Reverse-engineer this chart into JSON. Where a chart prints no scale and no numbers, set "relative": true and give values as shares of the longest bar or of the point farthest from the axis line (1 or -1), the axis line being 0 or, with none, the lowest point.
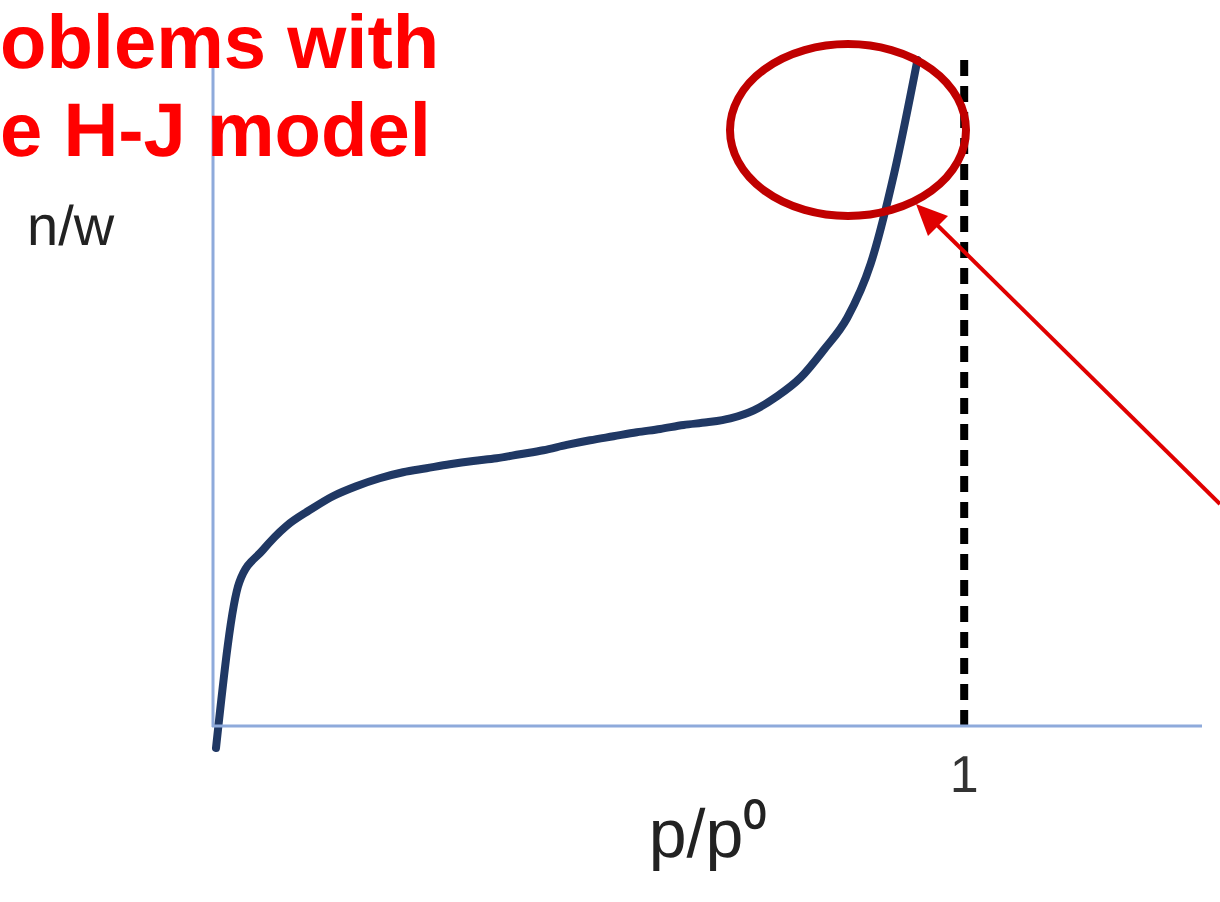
{
  "chart_data": {
    "type": "line",
    "title": [
      "oblems with",
      "e H-J model"
    ],
    "xlabel": "p/p⁰",
    "ylabel": "n/w",
    "relative": true,
    "categories": [
      null,
      null,
      null,
      null,
      null,
      null,
      null,
      null,
      null,
      null,
      null,
      null,
      null,
      null,
      null,
      null,
      null,
      null,
      null,
      null,
      null,
      null,
      null,
      null,
      null,
      null,
      null,
      null,
      null,
      null,
      null,
      null,
      null,
      null,
      null,
      null,
      null,
      null,
      null,
      null,
      null,
      null,
      null
    ],
    "series": [
      {
        "color": "#203864",
        "values": [
          -0.033,
          0.216,
          0.264,
          0.3,
          0.324,
          0.345,
          0.36,
          0.372,
          0.381,
          0.387,
          0.393,
          0.398,
          0.402,
          0.408,
          0.414,
          0.422,
          0.429,
          0.435,
          0.441,
          0.446,
          0.452,
          0.456,
          0.462,
          0.474,
          0.495,
          0.523,
          0.565,
          0.613,
          0.694,
          0.829,
          1.0,
          null,
          null,
          null,
          null,
          null,
          null,
          null,
          null,
          null,
          null,
          null,
          null
        ]
      }
    ],
    "annotations": [
      "1"
    ],
    "ref_lines": [
      {
        "axis": "y",
        "value": 0,
        "color": "#8eaadb",
        "line_style": "solid"
      }
    ],
    "legend": false,
    "tick_labels": false,
    "marker": "none",
    "line_style": "solid"
  }
}
